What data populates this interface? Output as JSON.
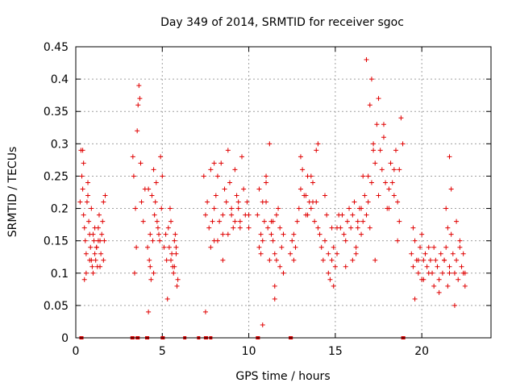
{
  "chart_data": {
    "type": "scatter",
    "title": "Day 349 of 2014, SRMTID for receiver sgoc",
    "xlabel": "GPS time / hours",
    "ylabel": "SRMTID / TECUs",
    "xlim": [
      0,
      24
    ],
    "ylim": [
      0,
      0.45
    ],
    "xticks": [
      0,
      5,
      10,
      15,
      20
    ],
    "yticks": [
      0,
      0.05,
      0.1,
      0.15,
      0.2,
      0.25,
      0.3,
      0.35,
      0.4,
      0.45
    ],
    "ytick_labels": [
      "0",
      "0.05",
      "0.1",
      "0.15",
      "0.2",
      "0.25",
      "0.3",
      "0.35",
      "0.4",
      "0.45"
    ],
    "grid": true,
    "marker": "plus",
    "color": "#e00000",
    "series": [
      {
        "name": "SRMTID",
        "x": [
          0.25,
          0.3,
          0.35,
          0.4,
          0.45,
          0.5,
          0.55,
          0.6,
          0.65,
          0.7,
          0.75,
          0.8,
          0.85,
          0.9,
          0.95,
          1.0,
          1.05,
          1.1,
          1.15,
          1.2,
          1.25,
          1.3,
          1.35,
          1.4,
          1.45,
          1.5,
          1.55,
          1.6,
          1.65,
          1.7,
          0.5,
          0.6,
          0.8,
          1.0,
          1.2,
          1.4,
          1.6,
          0.4,
          0.45,
          0.7,
          0.9,
          1.1,
          1.3,
          3.3,
          3.35,
          3.45,
          3.55,
          3.6,
          3.65,
          3.7,
          3.75,
          3.5,
          3.4,
          3.8,
          3.9,
          4.0,
          4.15,
          4.2,
          4.3,
          4.4,
          4.5,
          4.6,
          4.7,
          4.8,
          4.9,
          5.0,
          4.25,
          4.35,
          4.45,
          4.55,
          4.65,
          4.75,
          4.85,
          4.95,
          4.3,
          4.5,
          4.2,
          5.2,
          5.3,
          5.4,
          5.5,
          5.6,
          5.7,
          5.8,
          5.9,
          5.25,
          5.35,
          5.45,
          5.55,
          5.65,
          5.75,
          5.85,
          5.1,
          5.5,
          5.7,
          5.8,
          7.4,
          7.5,
          7.6,
          7.7,
          7.8,
          7.9,
          8.0,
          8.1,
          8.2,
          8.3,
          8.4,
          8.5,
          8.6,
          8.7,
          8.8,
          8.9,
          9.0,
          9.1,
          9.2,
          9.3,
          9.4,
          9.5,
          9.6,
          9.7,
          9.8,
          9.9,
          10.0,
          7.5,
          8.0,
          8.5,
          9.0,
          9.5,
          10.0,
          8.2,
          8.8,
          9.4,
          9.2,
          8.0,
          8.5,
          7.8,
          10.5,
          10.6,
          10.7,
          10.8,
          10.9,
          11.0,
          11.1,
          11.2,
          11.3,
          11.4,
          11.5,
          11.6,
          11.7,
          11.8,
          11.9,
          12.0,
          10.6,
          10.8,
          11.0,
          11.2,
          11.4,
          11.6,
          11.8,
          12.0,
          10.7,
          11.3,
          11.5,
          11.5,
          11.0,
          10.8,
          12.4,
          12.5,
          12.6,
          12.7,
          12.8,
          12.9,
          13.0,
          13.1,
          13.2,
          13.3,
          13.4,
          13.5,
          13.6,
          13.7,
          13.8,
          13.9,
          14.0,
          14.1,
          14.2,
          14.3,
          14.4,
          14.5,
          14.6,
          14.7,
          14.8,
          14.9,
          15.0,
          15.1,
          15.2,
          13.0,
          13.3,
          13.6,
          14.0,
          14.4,
          14.8,
          15.1,
          12.6,
          13.4,
          13.9,
          13.7,
          14.6,
          14.9,
          15.3,
          15.4,
          15.5,
          15.6,
          15.7,
          15.8,
          15.9,
          16.0,
          16.1,
          16.2,
          16.3,
          16.4,
          16.5,
          16.6,
          16.7,
          16.8,
          16.9,
          17.0,
          17.1,
          17.2,
          17.3,
          17.4,
          17.5,
          17.6,
          17.7,
          17.8,
          17.9,
          18.0,
          18.1,
          18.2,
          18.3,
          18.4,
          18.5,
          18.6,
          18.7,
          18.8,
          18.9,
          16.3,
          16.6,
          16.9,
          17.2,
          17.5,
          17.8,
          18.1,
          18.4,
          18.7,
          16.5,
          16.8,
          17.1,
          17.0,
          17.3,
          16.2,
          18.6,
          15.6,
          16.0,
          19.4,
          19.5,
          19.6,
          19.7,
          19.8,
          19.9,
          20.0,
          20.1,
          20.2,
          20.3,
          20.4,
          20.5,
          20.6,
          20.7,
          20.8,
          20.9,
          21.0,
          21.1,
          21.2,
          21.3,
          21.4,
          21.5,
          21.6,
          21.7,
          21.8,
          21.9,
          22.0,
          22.1,
          22.2,
          22.3,
          22.4,
          22.5,
          19.5,
          19.8,
          20.1,
          20.4,
          20.7,
          21.0,
          21.3,
          21.6,
          21.9,
          22.2,
          22.5,
          21.5,
          21.7,
          21.6,
          19.6,
          20.0,
          21.4,
          22.0,
          22.4
        ],
        "y": [
          0.21,
          0.29,
          0.25,
          0.23,
          0.19,
          0.17,
          0.15,
          0.13,
          0.21,
          0.24,
          0.18,
          0.16,
          0.14,
          0.12,
          0.11,
          0.16,
          0.15,
          0.13,
          0.12,
          0.14,
          0.11,
          0.17,
          0.19,
          0.15,
          0.13,
          0.16,
          0.18,
          0.21,
          0.15,
          0.22,
          0.09,
          0.1,
          0.12,
          0.1,
          0.14,
          0.11,
          0.12,
          0.29,
          0.27,
          0.22,
          0.2,
          0.17,
          0.15,
          0.28,
          0.25,
          0.2,
          0.32,
          0.36,
          0.39,
          0.37,
          0.27,
          0.14,
          0.1,
          0.21,
          0.18,
          0.23,
          0.14,
          0.04,
          0.16,
          0.22,
          0.26,
          0.21,
          0.18,
          0.16,
          0.28,
          0.25,
          0.12,
          0.09,
          0.15,
          0.19,
          0.24,
          0.17,
          0.15,
          0.2,
          0.11,
          0.1,
          0.23,
          0.16,
          0.06,
          0.14,
          0.12,
          0.11,
          0.15,
          0.13,
          0.09,
          0.12,
          0.17,
          0.2,
          0.13,
          0.1,
          0.16,
          0.08,
          0.14,
          0.18,
          0.11,
          0.14,
          0.25,
          0.19,
          0.21,
          0.17,
          0.26,
          0.18,
          0.2,
          0.22,
          0.15,
          0.18,
          0.27,
          0.19,
          0.23,
          0.21,
          0.16,
          0.24,
          0.19,
          0.17,
          0.26,
          0.22,
          0.2,
          0.18,
          0.28,
          0.23,
          0.19,
          0.21,
          0.17,
          0.04,
          0.15,
          0.12,
          0.2,
          0.17,
          0.19,
          0.25,
          0.29,
          0.21,
          0.18,
          0.27,
          0.16,
          0.14,
          0.19,
          0.14,
          0.16,
          0.15,
          0.18,
          0.21,
          0.17,
          0.12,
          0.16,
          0.15,
          0.13,
          0.19,
          0.2,
          0.17,
          0.14,
          0.16,
          0.23,
          0.21,
          0.25,
          0.3,
          0.18,
          0.12,
          0.11,
          0.1,
          0.13,
          0.18,
          0.08,
          0.06,
          0.24,
          0.02,
          0.13,
          0.15,
          0.12,
          0.14,
          0.18,
          0.2,
          0.23,
          0.26,
          0.22,
          0.19,
          0.25,
          0.21,
          0.2,
          0.24,
          0.18,
          0.21,
          0.17,
          0.16,
          0.14,
          0.12,
          0.15,
          0.19,
          0.1,
          0.09,
          0.12,
          0.14,
          0.11,
          0.17,
          0.19,
          0.28,
          0.22,
          0.25,
          0.3,
          0.22,
          0.17,
          0.13,
          0.16,
          0.19,
          0.29,
          0.21,
          0.13,
          0.08,
          0.17,
          0.19,
          0.16,
          0.15,
          0.18,
          0.2,
          0.17,
          0.19,
          0.21,
          0.14,
          0.18,
          0.2,
          0.16,
          0.18,
          0.22,
          0.19,
          0.25,
          0.17,
          0.24,
          0.3,
          0.27,
          0.33,
          0.22,
          0.29,
          0.26,
          0.31,
          0.24,
          0.2,
          0.23,
          0.27,
          0.24,
          0.22,
          0.29,
          0.21,
          0.26,
          0.34,
          0.3,
          0.17,
          0.25,
          0.21,
          0.29,
          0.37,
          0.33,
          0.2,
          0.26,
          0.18,
          0.2,
          0.43,
          0.4,
          0.36,
          0.12,
          0.13,
          0.15,
          0.11,
          0.12,
          0.13,
          0.11,
          0.15,
          0.12,
          0.1,
          0.14,
          0.09,
          0.12,
          0.13,
          0.11,
          0.14,
          0.12,
          0.1,
          0.08,
          0.12,
          0.11,
          0.09,
          0.13,
          0.1,
          0.12,
          0.14,
          0.08,
          0.11,
          0.16,
          0.13,
          0.1,
          0.12,
          0.09,
          0.14,
          0.11,
          0.13,
          0.1,
          0.17,
          0.12,
          0.09,
          0.1,
          0.14,
          0.07,
          0.12,
          0.1,
          0.05,
          0.15,
          0.08,
          0.17,
          0.23,
          0.28,
          0.06,
          0.16,
          0.2,
          0.18,
          0.1
        ]
      }
    ],
    "baseline_x": [
      0.3,
      0.35,
      3.25,
      3.3,
      3.55,
      3.6,
      4.1,
      4.15,
      5.0,
      5.05,
      6.3,
      7.1,
      7.5,
      7.55,
      7.8,
      10.5,
      10.55,
      12.4,
      12.45,
      18.9,
      18.95
    ]
  }
}
